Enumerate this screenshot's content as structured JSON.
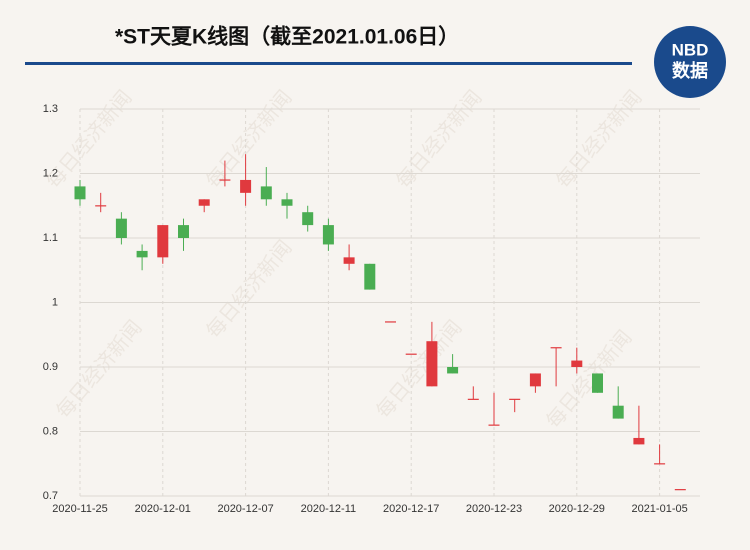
{
  "chart_data": {
    "type": "candlestick",
    "title": "*ST天夏K线图（截至2021.01.06日）",
    "logo": {
      "top": "NBD",
      "bottom": "数据"
    },
    "watermark": "每日经济新闻",
    "categories": [
      "2020-11-25",
      null,
      null,
      null,
      "2020-12-01",
      null,
      null,
      null,
      "2020-12-07",
      null,
      null,
      null,
      "2020-12-11",
      null,
      null,
      null,
      "2020-12-17",
      null,
      null,
      null,
      "2020-12-23",
      null,
      null,
      null,
      "2020-12-29",
      null,
      null,
      null,
      "2021-01-05",
      null
    ],
    "open": [
      1.18,
      1.15,
      1.13,
      1.08,
      1.07,
      1.12,
      1.15,
      1.19,
      1.17,
      1.18,
      1.16,
      1.14,
      1.12,
      1.06,
      1.06,
      0.97,
      0.92,
      0.87,
      0.9,
      0.85,
      0.81,
      0.85,
      0.87,
      0.93,
      0.9,
      0.89,
      0.84,
      0.78,
      0.75,
      0.71
    ],
    "high": [
      1.19,
      1.17,
      1.14,
      1.09,
      1.12,
      1.13,
      1.16,
      1.22,
      1.23,
      1.21,
      1.17,
      1.15,
      1.13,
      1.09,
      1.06,
      0.97,
      0.92,
      0.97,
      0.92,
      0.87,
      0.86,
      0.85,
      0.89,
      0.93,
      0.93,
      0.89,
      0.87,
      0.84,
      0.78,
      0.71
    ],
    "low": [
      1.15,
      1.14,
      1.09,
      1.05,
      1.06,
      1.08,
      1.14,
      1.18,
      1.15,
      1.15,
      1.13,
      1.11,
      1.08,
      1.05,
      1.02,
      0.97,
      0.92,
      0.87,
      0.89,
      0.85,
      0.81,
      0.83,
      0.86,
      0.87,
      0.89,
      0.86,
      0.82,
      0.78,
      0.75,
      0.71
    ],
    "close": [
      1.16,
      1.15,
      1.1,
      1.07,
      1.12,
      1.1,
      1.16,
      1.19,
      1.19,
      1.16,
      1.15,
      1.12,
      1.09,
      1.07,
      1.02,
      0.97,
      0.92,
      0.94,
      0.89,
      0.85,
      0.81,
      0.85,
      0.89,
      0.93,
      0.91,
      0.86,
      0.82,
      0.79,
      0.75,
      0.71
    ],
    "up_color": "#e0393e",
    "down_color": "#4aad52",
    "ylim": [
      0.7,
      1.3
    ],
    "yticks": [
      0.7,
      0.8,
      0.9,
      1,
      1.1,
      1.2,
      1.3
    ],
    "grid": true
  }
}
